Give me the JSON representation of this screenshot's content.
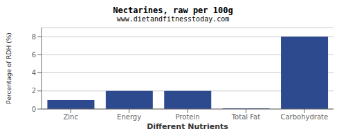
{
  "chart_data": {
    "type": "bar",
    "title": "Nectarines, raw per 100g",
    "subtitle": "www.dietandfitnesstoday.com",
    "xlabel": "Different Nutrients",
    "ylabel": "Percentage of RDH (%)",
    "categories": [
      "Zinc",
      "Energy",
      "Protein",
      "Total Fat",
      "Carbohydrate"
    ],
    "values": [
      1.0,
      2.0,
      2.0,
      0.07,
      8.0
    ],
    "color": "#2e4a8e",
    "ylim": [
      0,
      9
    ],
    "yticks": [
      0,
      2,
      4,
      6,
      8
    ],
    "grid": true
  }
}
